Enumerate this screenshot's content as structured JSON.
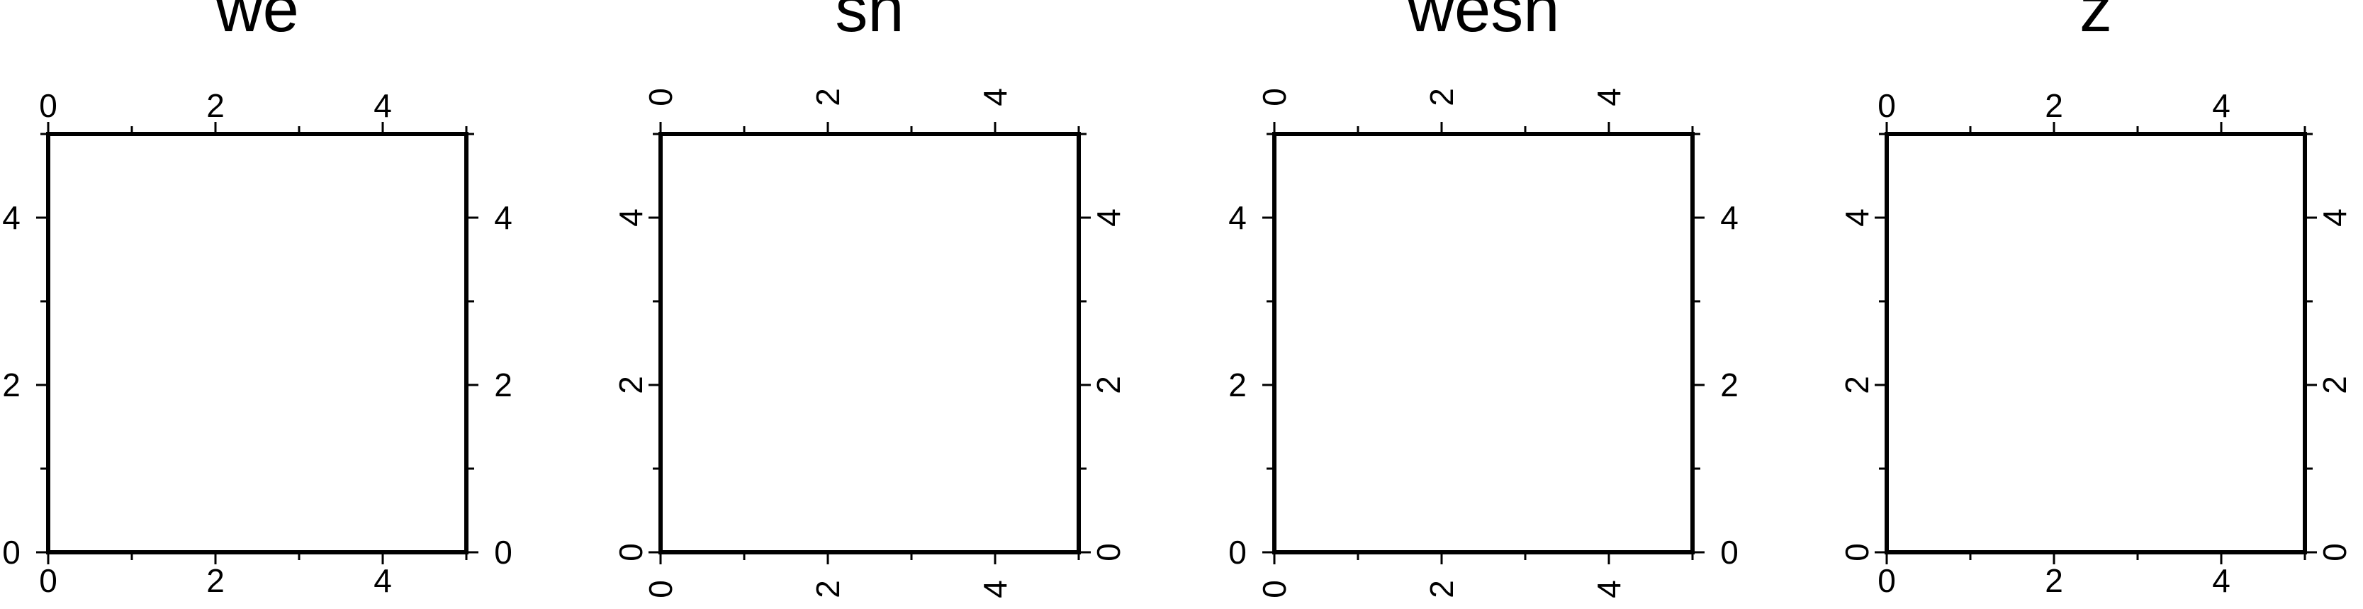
{
  "figure": {
    "background": "#ffffff",
    "stroke_color": "#000000"
  },
  "chart_data": [
    {
      "type": "scatter",
      "title": "we",
      "x": [],
      "y": [],
      "xlim": [
        0,
        5
      ],
      "ylim": [
        0,
        5
      ],
      "x_ticks": [
        "0",
        "2",
        "4"
      ],
      "y_ticks": [
        "0",
        "2",
        "4"
      ],
      "grid": false,
      "frame": "WESN",
      "labeled_sides": [
        "west",
        "east",
        "south",
        "north"
      ],
      "rotated_sides": []
    },
    {
      "type": "scatter",
      "title": "sn",
      "x": [],
      "y": [],
      "xlim": [
        0,
        5
      ],
      "ylim": [
        0,
        5
      ],
      "x_ticks": [
        "0",
        "2",
        "4"
      ],
      "y_ticks": [
        "0",
        "2",
        "4"
      ],
      "grid": false,
      "frame": "WESN",
      "labeled_sides": [
        "west",
        "east",
        "south",
        "north"
      ],
      "rotated_sides": [
        "south",
        "north",
        "west",
        "east"
      ]
    },
    {
      "type": "scatter",
      "title": "wesn",
      "x": [],
      "y": [],
      "xlim": [
        0,
        5
      ],
      "ylim": [
        0,
        5
      ],
      "x_ticks": [
        "0",
        "2",
        "4"
      ],
      "y_ticks": [
        "0",
        "2",
        "4"
      ],
      "grid": false,
      "frame": "WESN",
      "labeled_sides": [
        "west",
        "east",
        "south",
        "north"
      ],
      "rotated_sides": [
        "south",
        "north"
      ]
    },
    {
      "type": "scatter",
      "title": "z",
      "x": [],
      "y": [],
      "xlim": [
        0,
        5
      ],
      "ylim": [
        0,
        5
      ],
      "x_ticks": [
        "0",
        "2",
        "4"
      ],
      "y_ticks": [
        "0",
        "2",
        "4"
      ],
      "grid": false,
      "frame": "WESN",
      "labeled_sides": [
        "west",
        "east",
        "south",
        "north"
      ],
      "rotated_sides": [
        "west",
        "east"
      ]
    }
  ]
}
